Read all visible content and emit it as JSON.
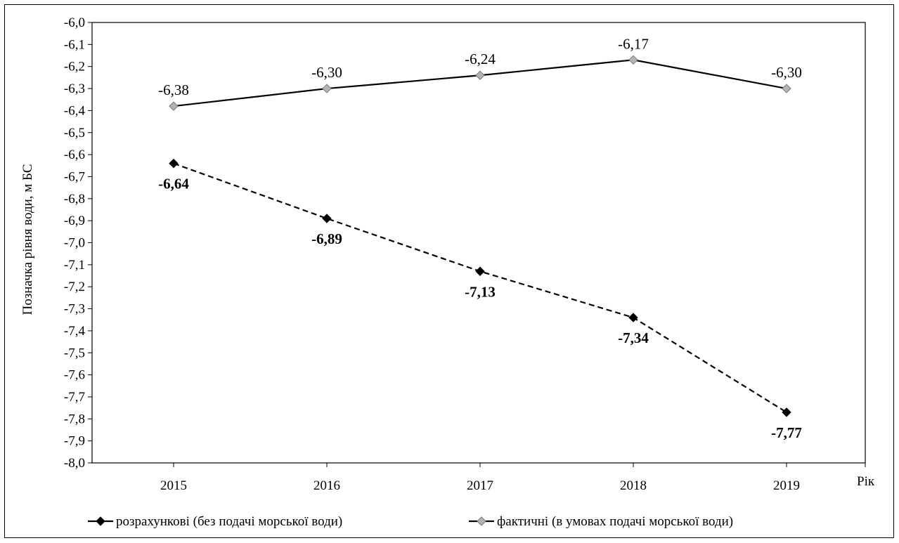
{
  "chart_data": {
    "type": "line",
    "title": "",
    "ylabel": "Позначка рівня води, м БС",
    "xlabel": "Рік",
    "ylim": [
      -8.0,
      -6.0
    ],
    "ytick_step": 0.1,
    "yticks": [
      "-6,0",
      "-6,1",
      "-6,2",
      "-6,3",
      "-6,4",
      "-6,5",
      "-6,6",
      "-6,7",
      "-6,8",
      "-6,9",
      "-7,0",
      "-7,1",
      "-7,2",
      "-7,3",
      "-7,4",
      "-7,5",
      "-7,6",
      "-7,7",
      "-7,8",
      "-7,9",
      "-8,0"
    ],
    "categories": [
      "2015",
      "2016",
      "2017",
      "2018",
      "2019"
    ],
    "grid": false,
    "legend_position": "bottom",
    "series": [
      {
        "name": "розрахункові (без подачі морської води)",
        "values": [
          -6.64,
          -6.89,
          -7.13,
          -7.34,
          -7.77
        ],
        "labels": [
          "-6,64",
          "-6,89",
          "-7,13",
          "-7,34",
          "-7,77"
        ],
        "color": "#000000",
        "marker_fill": "#000000",
        "line_style": "dashed",
        "label_position": "below",
        "label_bold": true
      },
      {
        "name": "фактичні (в умовах подачі морської води)",
        "values": [
          -6.38,
          -6.3,
          -6.24,
          -6.17,
          -6.3
        ],
        "labels": [
          "-6,38",
          "-6,30",
          "-6,24",
          "-6,17",
          "-6,30"
        ],
        "color": "#000000",
        "marker_fill": "#b3b3b3",
        "line_style": "solid",
        "label_position": "above",
        "label_bold": false
      }
    ]
  }
}
